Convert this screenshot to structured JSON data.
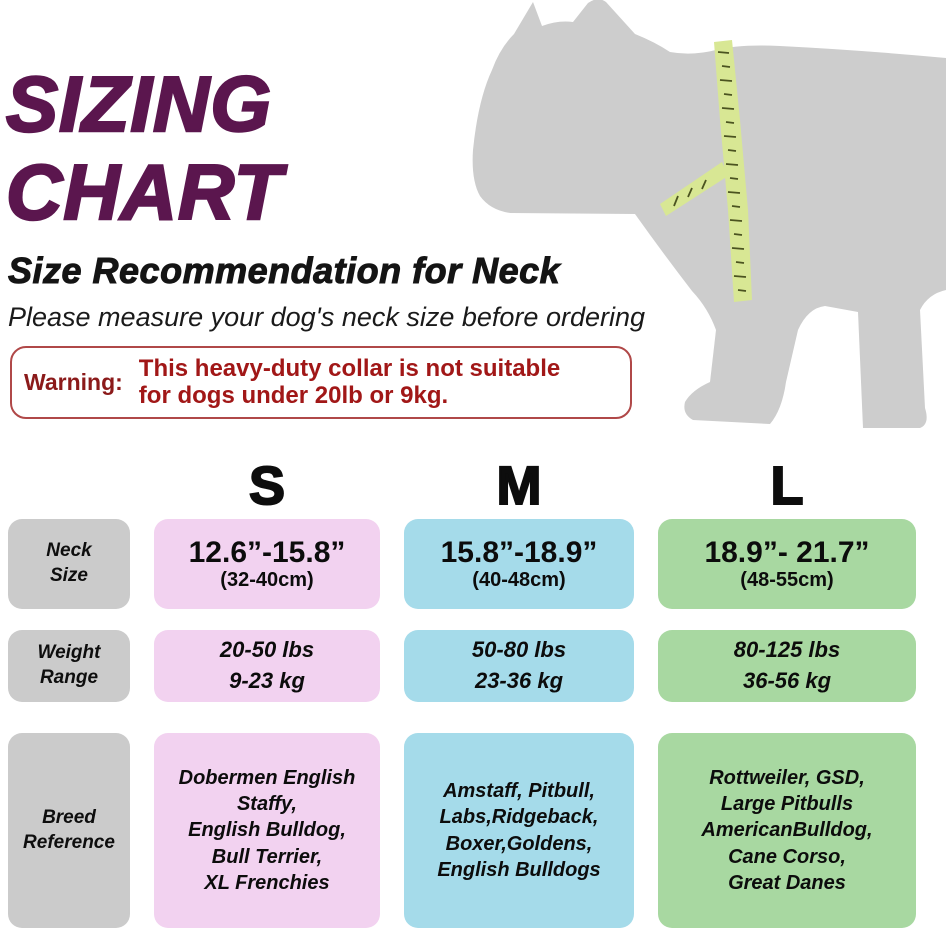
{
  "title": {
    "line1": "SIZING",
    "line2": "CHART"
  },
  "header": {
    "subtitle": "Size Recommendation for Neck",
    "tagline": "Please measure your dog's neck size before ordering"
  },
  "warning": {
    "label": "Warning:",
    "lines": [
      "This heavy-duty collar is not suitable",
      "for dogs under 20lb or 9kg."
    ]
  },
  "colors": {
    "title_purple": "#5b164e",
    "warning_red": "#a11717",
    "warning_border": "#b04848",
    "label_gray": "#cbcbcb",
    "size_s_pink": "#f2d2f0",
    "size_m_blue": "#a5dbea",
    "size_l_green": "#a8d8a1",
    "dog_gray": "#cdcdcd",
    "tape_green": "#d8e794"
  },
  "size_table": {
    "columns": [
      {
        "letter": "S",
        "accent": "#f2d2f0"
      },
      {
        "letter": "M",
        "accent": "#a5dbea"
      },
      {
        "letter": "L",
        "accent": "#a8d8a1"
      }
    ],
    "row_labels": [
      [
        "Neck",
        "Size"
      ],
      [
        "Weight",
        "Range"
      ],
      [
        "Breed",
        "Reference"
      ]
    ],
    "neck_size": [
      {
        "inches": "12.6”-15.8”",
        "cm": "(32-40cm)"
      },
      {
        "inches": "15.8”-18.9”",
        "cm": "(40-48cm)"
      },
      {
        "inches": "18.9”- 21.7”",
        "cm": "(48-55cm)"
      }
    ],
    "weight_range": [
      [
        "20-50 lbs",
        "9-23 kg"
      ],
      [
        "50-80 lbs",
        "23-36 kg"
      ],
      [
        "80-125 lbs",
        "36-56 kg"
      ]
    ],
    "breed_reference": [
      [
        "Dobermen English",
        "Staffy,",
        "English Bulldog,",
        "Bull Terrier,",
        "XL Frenchies"
      ],
      [
        "Amstaff, Pitbull,",
        "Labs,Ridgeback,",
        "Boxer,Goldens,",
        "English Bulldogs"
      ],
      [
        "Rottweiler, GSD,",
        "Large Pitbulls",
        "AmericanBulldog,",
        "Cane Corso,",
        "Great Danes"
      ]
    ]
  },
  "chart_data": {
    "type": "table",
    "title": "SIZING CHART — Size Recommendation for Neck",
    "note": "Please measure your dog's neck size before ordering",
    "warning": "This heavy-duty collar is not suitable for dogs under 20lb or 9kg.",
    "columns": [
      "",
      "S",
      "M",
      "L"
    ],
    "rows": [
      [
        "Neck Size",
        "12.6”-15.8” (32-40cm)",
        "15.8”-18.9” (40-48cm)",
        "18.9”- 21.7” (48-55cm)"
      ],
      [
        "Weight Range",
        "20-50 lbs / 9-23 kg",
        "50-80 lbs / 23-36 kg",
        "80-125 lbs / 36-56 kg"
      ],
      [
        "Breed Reference",
        "Dobermen English Staffy, English Bulldog, Bull Terrier, XL Frenchies",
        "Amstaff, Pitbull, Labs, Ridgeback, Boxer, Goldens, English Bulldogs",
        "Rottweiler, GSD, Large Pitbulls, AmericanBulldog, Cane Corso, Great Danes"
      ]
    ]
  }
}
